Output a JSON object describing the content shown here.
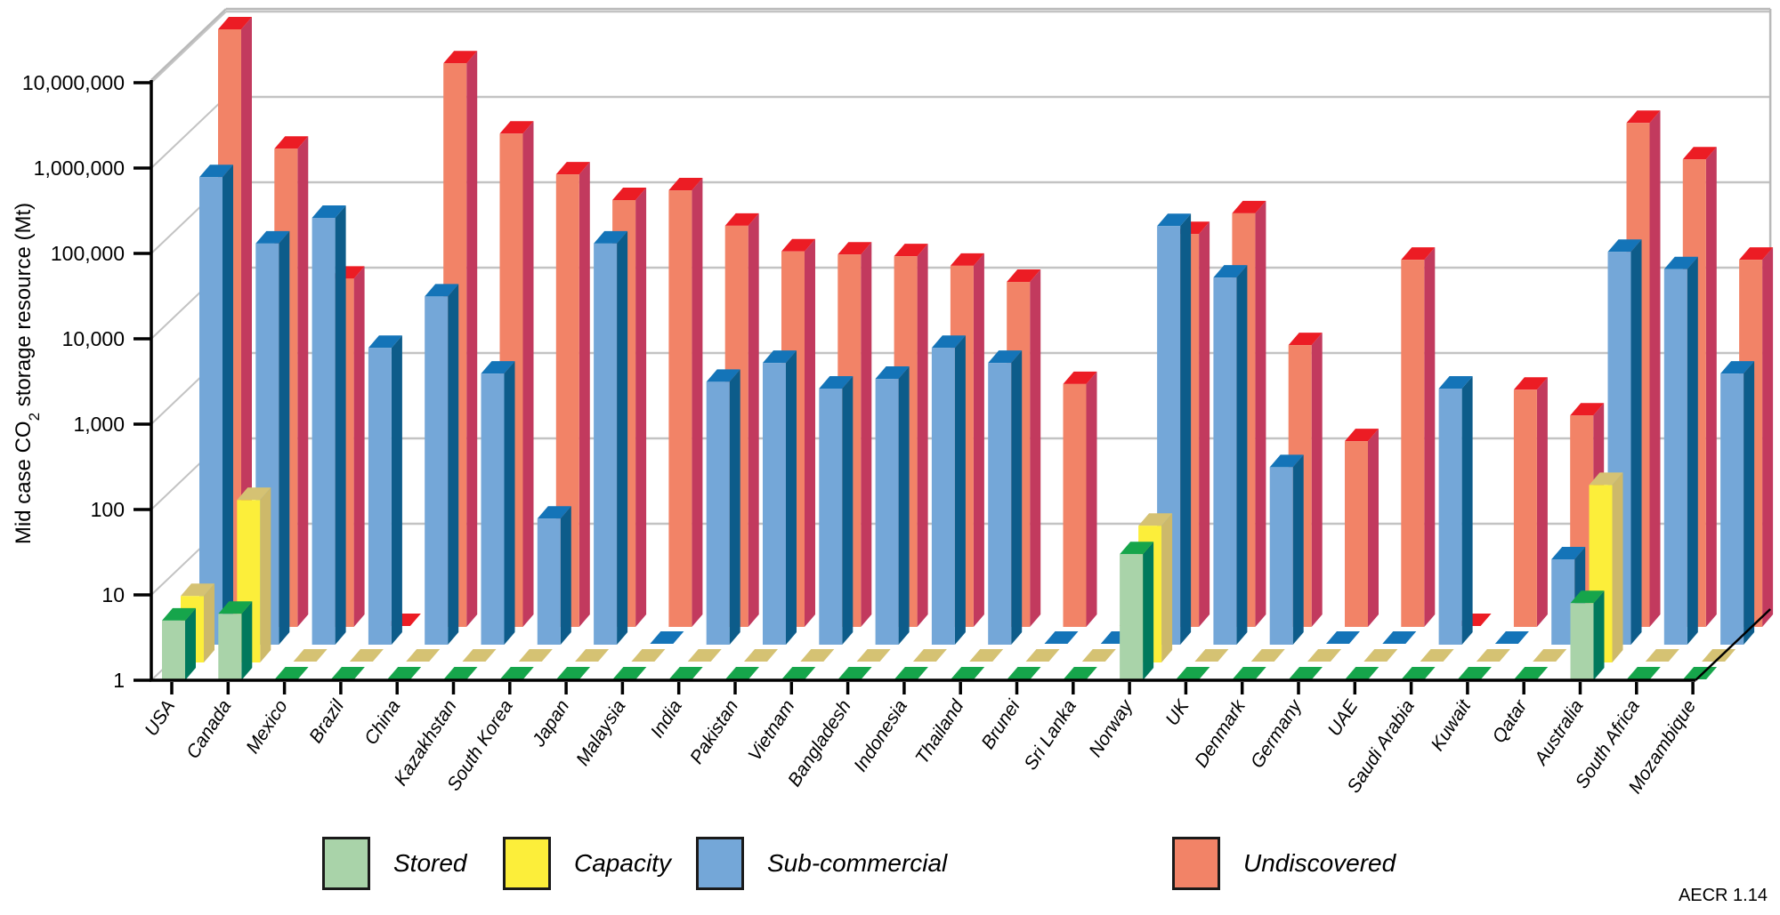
{
  "figure_label": "AECR 1.14",
  "y_axis": {
    "label_pre": "Mid case CO",
    "label_sub": "2",
    "label_post": " storage resource (Mt)",
    "ticks": [
      "1",
      "10",
      "100",
      "1,000",
      "10,000",
      "100,000",
      "1,000,000",
      "10,000,000"
    ]
  },
  "legend": {
    "items": [
      {
        "name": "Stored",
        "color": "#a9d3a9"
      },
      {
        "name": "Capacity",
        "color": "#fcee3a"
      },
      {
        "name": "Sub-commercial",
        "color": "#74a7d8"
      },
      {
        "name": "Undiscovered",
        "color": "#f28367"
      }
    ]
  },
  "chart_data": {
    "type": "bar",
    "subtype": "3d-column-log",
    "title": "",
    "xlabel": "",
    "ylabel": "Mid case CO2 storage resource (Mt)",
    "yscale": "log",
    "ylim": [
      1,
      10000000
    ],
    "grid": true,
    "legend_position": "bottom",
    "categories": [
      "USA",
      "Canada",
      "Mexico",
      "Brazil",
      "China",
      "Kazakhstan",
      "South Korea",
      "Japan",
      "Malaysia",
      "India",
      "Pakistan",
      "Vietnam",
      "Bangladesh",
      "Indonesia",
      "Thailand",
      "Brunei",
      "Sri Lanka",
      "Norway",
      "UK",
      "Denmark",
      "Germany",
      "UAE",
      "Saudi Arabia",
      "Kuwait",
      "Qatar",
      "Australia",
      "South Africa",
      "Mozambique"
    ],
    "series": [
      {
        "name": "Stored",
        "colors": {
          "front": "#a9d3a9",
          "side": "#00795c",
          "top": "#16a54b"
        },
        "values": [
          5,
          6,
          0,
          0,
          0,
          0,
          0,
          0,
          0,
          0,
          0,
          0,
          0,
          0,
          0,
          0,
          0,
          30,
          0,
          0,
          0,
          0,
          0,
          0,
          0,
          8,
          0,
          0
        ]
      },
      {
        "name": "Capacity",
        "colors": {
          "front": "#fcee3a",
          "side": "#cdb96a",
          "top": "#d5c273"
        },
        "values": [
          6,
          80,
          0,
          0,
          0,
          0,
          0,
          0,
          0,
          0,
          0,
          0,
          0,
          0,
          0,
          0,
          0,
          40,
          0,
          0,
          0,
          0,
          0,
          0,
          0,
          120,
          0,
          0
        ]
      },
      {
        "name": "Sub-commercial",
        "colors": {
          "front": "#74a7d8",
          "side": "#0d5c8a",
          "top": "#1474b8"
        },
        "values": [
          300000,
          50000,
          100000,
          3000,
          12000,
          1500,
          30,
          50000,
          2,
          1200,
          2000,
          1000,
          1300,
          3000,
          2000,
          2,
          2,
          80000,
          20000,
          120,
          2,
          2,
          1000,
          2,
          10,
          40000,
          25000,
          1500
        ]
      },
      {
        "name": "Undiscovered",
        "colors": {
          "front": "#f28367",
          "side": "#c23a5e",
          "top": "#ec1c24"
        },
        "values": [
          10000000,
          400000,
          12000,
          2,
          4000000,
          600000,
          200000,
          100000,
          130000,
          50000,
          25000,
          23000,
          22000,
          17000,
          11000,
          700,
          2,
          40000,
          70000,
          2000,
          150,
          20000,
          2,
          600,
          300,
          800000,
          300000,
          20000
        ]
      }
    ]
  }
}
